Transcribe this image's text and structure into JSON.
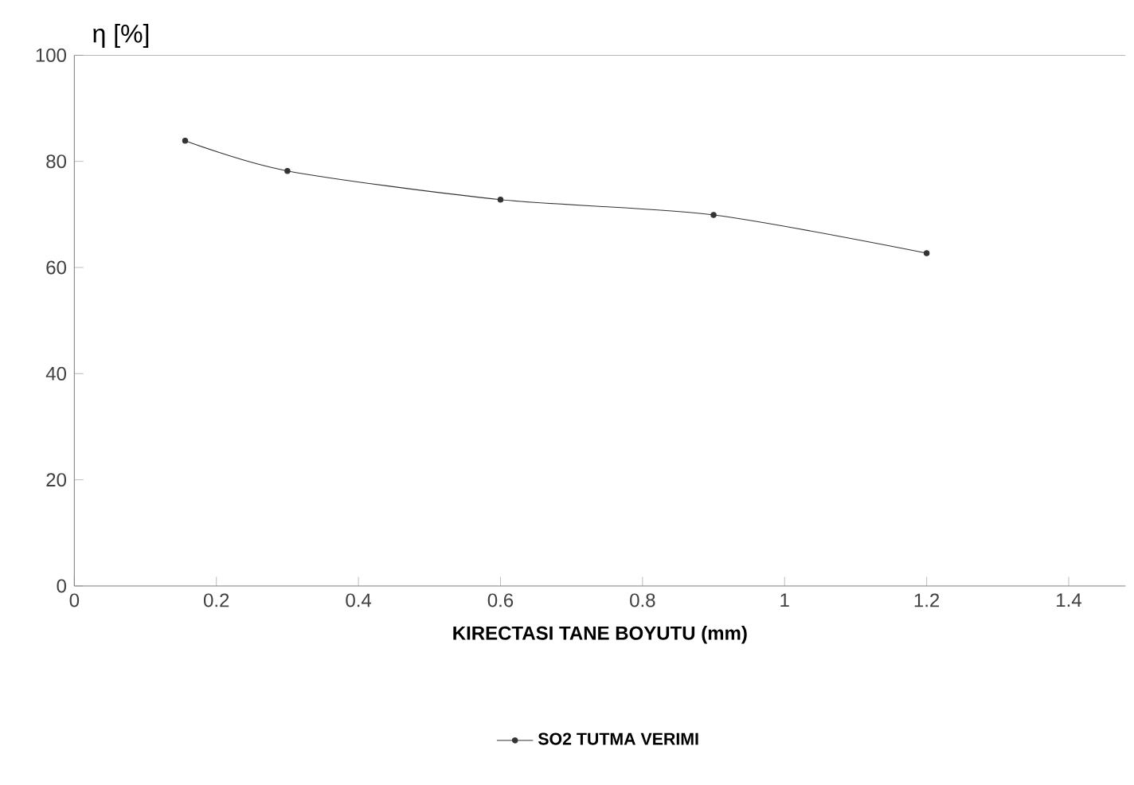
{
  "chart_data": {
    "type": "line",
    "xlabel": "KIRECTASI TANE BOYUTU (mm)",
    "ylabel": "η [%]",
    "x": [
      0.156,
      0.3,
      0.6,
      0.9,
      1.2
    ],
    "series": [
      {
        "name": "SO2 TUTMA VERIMI",
        "color": "#333333",
        "values": [
          83.9,
          78.2,
          72.8,
          69.9,
          62.7
        ]
      }
    ],
    "xlim": [
      0,
      1.48
    ],
    "xticks": [
      0,
      0.2,
      0.4,
      0.6,
      0.8,
      1,
      1.2,
      1.4
    ],
    "ylim": [
      0,
      100
    ],
    "yticks": [
      0,
      20,
      40,
      60,
      80,
      100
    ],
    "grid": false,
    "legend": "bottom",
    "marker": "circle",
    "line_style": "solid"
  }
}
